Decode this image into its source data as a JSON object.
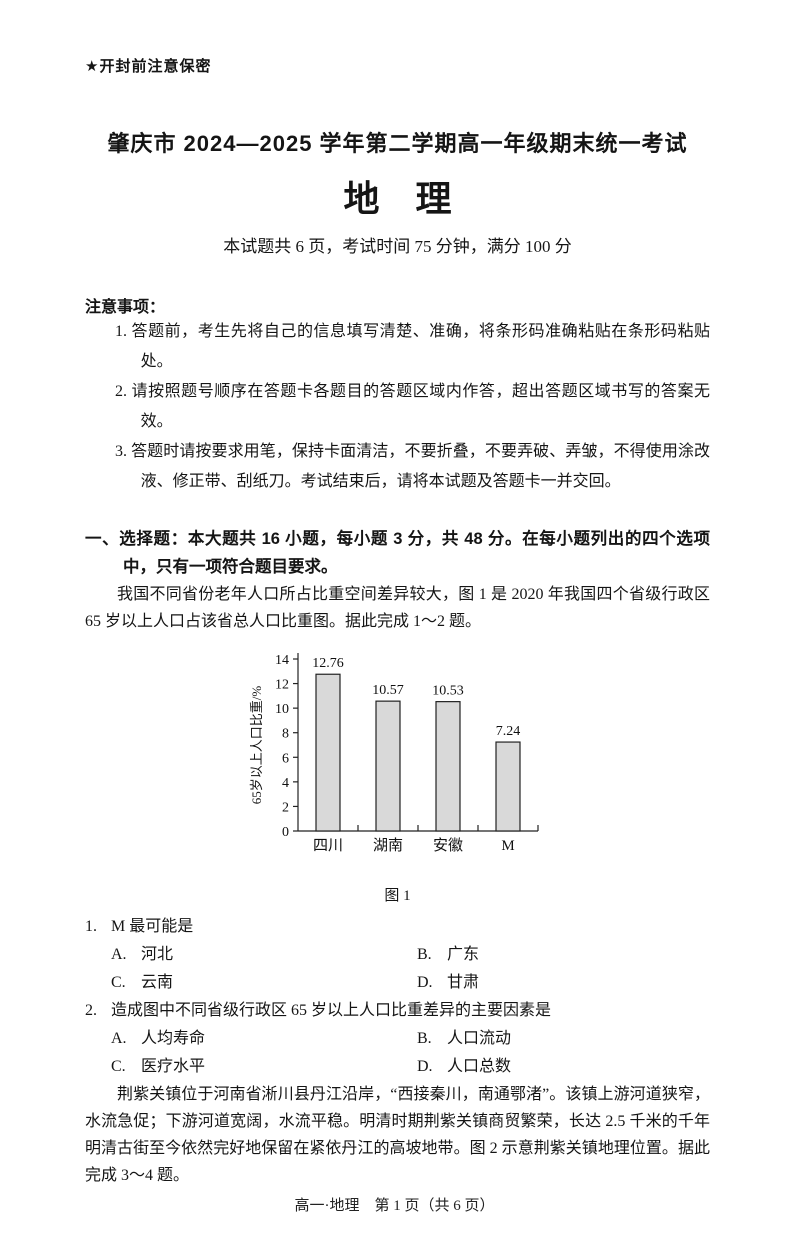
{
  "security_notice": "★开封前注意保密",
  "header": {
    "title": "肇庆市 2024—2025 学年第二学期高一年级期末统一考试",
    "subject": "地　理",
    "exam_info": "本试题共 6 页，考试时间 75 分钟，满分 100 分"
  },
  "notes": {
    "heading": "注意事项：",
    "items": [
      "1. 答题前，考生先将自己的信息填写清楚、准确，将条形码准确粘贴在条形码粘贴处。",
      "2. 请按照题号顺序在答题卡各题目的答题区域内作答，超出答题区域书写的答案无效。",
      "3. 答题时请按要求用笔，保持卡面清洁，不要折叠，不要弄破、弄皱，不得使用涂改液、修正带、刮纸刀。考试结束后，请将本试题及答题卡一并交回。"
    ]
  },
  "section": {
    "heading": "一、选择题：本大题共 16 小题，每小题 3 分，共 48 分。在每小题列出的四个选项中，只有一项符合题目要求。"
  },
  "intro": "我国不同省份老年人口所占比重空间差异较大，图 1 是 2020 年我国四个省级行政区 65 岁以上人口占该省总人口比重图。据此完成 1～2 题。",
  "figure1": {
    "caption": "图 1"
  },
  "questions": [
    {
      "number": "1.",
      "stem": "M 最可能是",
      "options": [
        {
          "label": "A.",
          "text": "河北"
        },
        {
          "label": "B.",
          "text": "广东"
        },
        {
          "label": "C.",
          "text": "云南"
        },
        {
          "label": "D.",
          "text": "甘肃"
        }
      ]
    },
    {
      "number": "2.",
      "stem": "造成图中不同省级行政区 65 岁以上人口比重差异的主要因素是",
      "options": [
        {
          "label": "A.",
          "text": "人均寿命"
        },
        {
          "label": "B.",
          "text": "人口流动"
        },
        {
          "label": "C.",
          "text": "医疗水平"
        },
        {
          "label": "D.",
          "text": "人口总数"
        }
      ]
    }
  ],
  "passage2": "荆紫关镇位于河南省淅川县丹江沿岸，“西接秦川，南通鄂渚”。该镇上游河道狭窄，水流急促；下游河道宽阔，水流平稳。明清时期荆紫关镇商贸繁荣，长达 2.5 千米的千年明清古街至今依然完好地保留在紧依丹江的高坡地带。图 2 示意荆紫关镇地理位置。据此完成 3～4 题。",
  "footer": "高一·地理　第 1 页（共 6 页）",
  "chart_data": {
    "type": "bar",
    "categories": [
      "四川",
      "湖南",
      "安徽",
      "M"
    ],
    "values": [
      12.76,
      10.57,
      10.53,
      7.24
    ],
    "value_labels": [
      "12.76",
      "10.57",
      "10.53",
      "7.24"
    ],
    "title": "图 1",
    "xlabel": "",
    "ylabel": "65岁以上人口比重/%",
    "ylim": [
      0,
      14
    ],
    "ytick_step": 2,
    "grid": false,
    "legend_position": "none",
    "bar_fill": "#d9d9d9",
    "bar_stroke": "#222222"
  }
}
